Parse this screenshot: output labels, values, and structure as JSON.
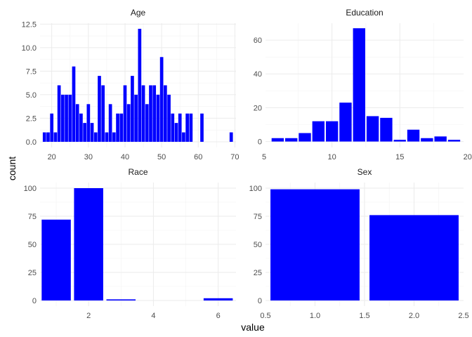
{
  "chart_data": {
    "type": "bar",
    "xlabel": "value",
    "ylabel": "count",
    "colors": {
      "bar": "#0000ff",
      "grid": "#ebebeb"
    },
    "grid": true,
    "facets": [
      {
        "title": "Age",
        "x": [
          18,
          19,
          20,
          21,
          22,
          23,
          24,
          25,
          26,
          27,
          28,
          29,
          30,
          31,
          32,
          33,
          34,
          35,
          36,
          37,
          38,
          39,
          40,
          41,
          42,
          43,
          44,
          45,
          46,
          47,
          48,
          49,
          50,
          51,
          52,
          53,
          54,
          55,
          56,
          57,
          58,
          61,
          69
        ],
        "values": [
          1,
          1,
          3,
          1,
          6,
          5,
          5,
          5,
          8,
          4,
          3,
          2,
          4,
          2,
          1,
          7,
          6,
          1,
          4,
          1,
          3,
          3,
          6,
          4,
          7,
          5,
          12,
          6,
          4,
          6,
          6,
          5,
          9,
          6,
          5,
          3,
          2,
          3,
          1,
          3,
          3,
          3,
          1
        ],
        "xlim": [
          16.8,
          70.3
        ],
        "ylim": [
          -0.6,
          12.6
        ],
        "xticks": [
          "20",
          "30",
          "40",
          "50",
          "60",
          "70"
        ],
        "yticks": [
          "0.0",
          "2.5",
          "5.0",
          "7.5",
          "10.0",
          "12.5"
        ]
      },
      {
        "title": "Education",
        "x": [
          6,
          7,
          8,
          9,
          10,
          11,
          12,
          13,
          14,
          15,
          16,
          17,
          18,
          19
        ],
        "values": [
          2,
          2,
          5,
          12,
          12,
          23,
          67,
          15,
          14,
          1,
          7,
          2,
          3,
          1
        ],
        "xlim": [
          5.1,
          19.7
        ],
        "ylim": [
          -3.5,
          70
        ],
        "xticks": [
          "5",
          "10",
          "15",
          "20"
        ],
        "yticks": [
          "0",
          "20",
          "40",
          "60"
        ]
      },
      {
        "title": "Race",
        "x": [
          1,
          2,
          3,
          6
        ],
        "values": [
          72,
          100,
          1,
          2
        ],
        "xlim": [
          0.5,
          6.55
        ],
        "ylim": [
          -5,
          105
        ],
        "xticks": [
          "2",
          "4",
          "6"
        ],
        "yticks": [
          "0",
          "25",
          "50",
          "75",
          "100"
        ]
      },
      {
        "title": "Sex",
        "x": [
          1,
          2
        ],
        "values": [
          99,
          76
        ],
        "xlim": [
          0.5,
          2.5
        ],
        "ylim": [
          -5,
          105
        ],
        "xticks": [
          "0.5",
          "1.0",
          "1.5",
          "2.0",
          "2.5"
        ],
        "yticks": [
          "0",
          "25",
          "50",
          "75",
          "100"
        ]
      }
    ]
  }
}
